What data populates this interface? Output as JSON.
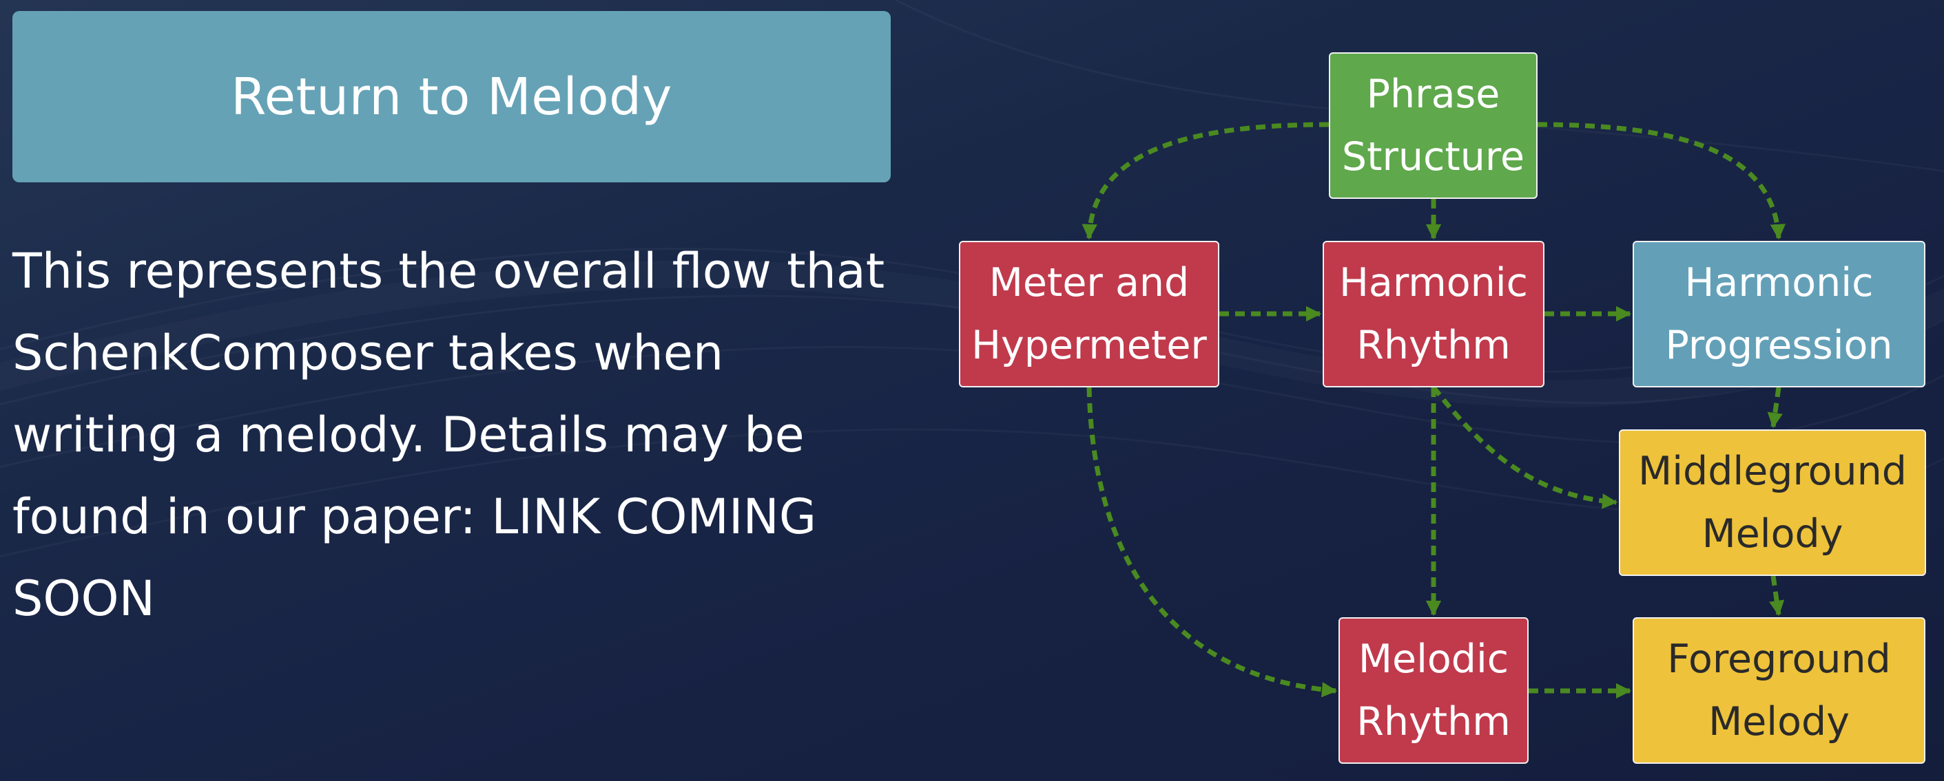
{
  "return_button": {
    "label": "Return to Melody"
  },
  "description": "This represents the overall flow that SchenkComposer takes when writing a melody. Details may be found in our paper: LINK COMING SOON",
  "colors": {
    "button": "#65a2b6",
    "arrow": "#4a8a20",
    "green_node": "#5fa84c",
    "red_node": "#c03a4c",
    "blue_node": "#63a0b8",
    "yellow_node": "#eec23a"
  },
  "diagram": {
    "nodes": {
      "phrase_structure": {
        "line1": "Phrase",
        "line2": "Structure"
      },
      "meter_hypermeter": {
        "line1": "Meter and",
        "line2": "Hypermeter"
      },
      "harmonic_rhythm": {
        "line1": "Harmonic",
        "line2": "Rhythm"
      },
      "harmonic_progression": {
        "line1": "Harmonic",
        "line2": "Progression"
      },
      "middleground_melody": {
        "line1": "Middleground",
        "line2": "Melody"
      },
      "melodic_rhythm": {
        "line1": "Melodic",
        "line2": "Rhythm"
      },
      "foreground_melody": {
        "line1": "Foreground",
        "line2": "Melody"
      }
    },
    "edges": [
      {
        "from": "phrase_structure",
        "to": "meter_hypermeter"
      },
      {
        "from": "phrase_structure",
        "to": "harmonic_rhythm"
      },
      {
        "from": "phrase_structure",
        "to": "harmonic_progression"
      },
      {
        "from": "meter_hypermeter",
        "to": "harmonic_rhythm"
      },
      {
        "from": "harmonic_rhythm",
        "to": "harmonic_progression"
      },
      {
        "from": "harmonic_progression",
        "to": "middleground_melody"
      },
      {
        "from": "harmonic_rhythm",
        "to": "middleground_melody"
      },
      {
        "from": "harmonic_rhythm",
        "to": "melodic_rhythm"
      },
      {
        "from": "meter_hypermeter",
        "to": "melodic_rhythm"
      },
      {
        "from": "middleground_melody",
        "to": "foreground_melody"
      },
      {
        "from": "melodic_rhythm",
        "to": "foreground_melody"
      }
    ]
  }
}
